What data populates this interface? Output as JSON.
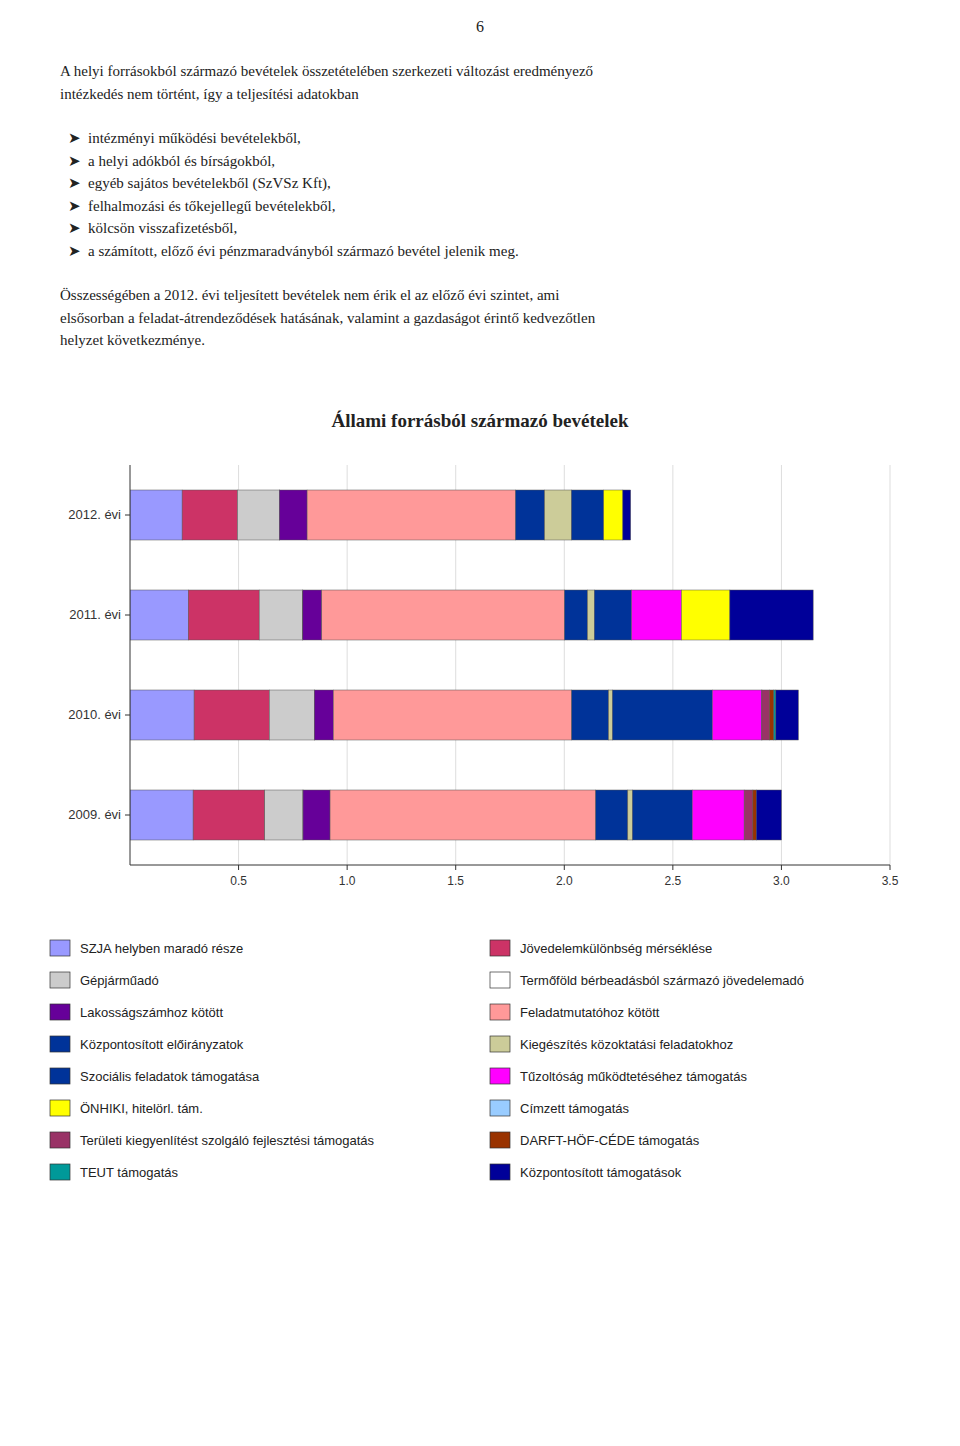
{
  "page_number": "6",
  "body_text": [
    [
      "A helyi forrásokból származó bevételek összetételében szerkezeti változást eredményező",
      "intézkedés nem történt, így a teljesítési adatokban"
    ],
    [
      "  ➤  intézményi működési bevételekből,",
      "  ➤  a helyi adókból és bírságokból,",
      "  ➤  egyéb sajátos bevételekből (SzVSz Kft),",
      "  ➤  felhalmozási és tőkejellegű bevételekből,",
      "  ➤  kölcsön visszafizetésből,",
      "  ➤  a számított, előző évi pénzmaradványból származó bevétel jelenik meg."
    ],
    [
      "Összességében a 2012. évi teljesített bevételek nem érik el az előző évi szintet, ami",
      "elsősorban a feladat-átrendeződések hatásának, valamint a gazdaságot érintő kedvezőtlen",
      "helyzet következménye."
    ]
  ],
  "chart_data": {
    "type": "bar",
    "orientation": "horizontal",
    "stacked": true,
    "grid": true,
    "title": "Állami forrásból származó bevételek",
    "categories": [
      "2009. évi",
      "2010. évi",
      "2011. évi",
      "2012. évi"
    ],
    "xlim": [
      0,
      3.5
    ],
    "xticks": [
      0.5,
      {
        "value": 1,
        "label": "1.0"
      },
      1.5,
      {
        "value": 2,
        "label": "2.0"
      },
      2.5,
      {
        "value": 3,
        "label": "3.0"
      },
      3.5
    ],
    "series": [
      {
        "name": "SZJA helyben maradó része",
        "color": "#9999FF",
        "values": [
          0.290849,
          0.295379,
          0.268572,
          0.240234
        ]
      },
      {
        "name": "Jövedelemkülönbség mérséklése",
        "color": "#CC3366",
        "values": [
          0.32971,
          0.346205,
          0.326517,
          0.254847
        ]
      },
      {
        "name": "Gépjárműadó",
        "color": "#CCCCCC",
        "values": [
          0.176205,
          0.20762,
          0.200465,
          0.192926
        ]
      },
      {
        "name": "Termőföld bérbeadásból származó jövedelemadó",
        "color": "#FFFFFF",
        "values": [
          9.5e-05,
          0.000172,
          0.00027,
          0.000294
        ]
      },
      {
        "name": "Lakosságszámhoz kötött",
        "color": "#660099",
        "values": [
          0.124455,
          0.086852,
          0.087266,
          0.127303
        ]
      },
      {
        "name": "Feladatmutatóhoz kötött",
        "color": "#FF9999",
        "values": [
          1.223461,
          1.097844,
          1.118094,
          0.960144
        ]
      },
      {
        "name": "Központosított előirányzatok",
        "color": "#003399",
        "values": [
          0.147662,
          0.169913,
          0.105767,
          0.133721
        ]
      },
      {
        "name": "Kiegészítés közoktatási feladatokhoz",
        "color": "#CCCC99",
        "values": [
          0.021578,
          0.018,
          0.031606,
          0.123623
        ]
      },
      {
        "name": "Szociális feladatok támogatása",
        "color": "#003399",
        "values": [
          0.275194,
          0.459895,
          0.171201,
          0.148482
        ]
      },
      {
        "name": "Tűzoltóság működtetéséhez támogatás",
        "color": "#FF00FF",
        "values": [
          0.239268,
          0.227866,
          0.229351,
          0
        ]
      },
      {
        "name": "ÖNHIKI, hitelörl. tám.",
        "color": "#FFFF00",
        "values": [
          0,
          0,
          0.223455,
          0.08815
        ]
      },
      {
        "name": "Címzett támogatás",
        "color": "#99CCFF",
        "values": [
          0,
          0.000232,
          0,
          0
        ]
      },
      {
        "name": "Területi kiegyenlítést szolgáló fejlesztési támogatás",
        "color": "#993366",
        "values": [
          0.040179,
          0.034861,
          0,
          0
        ]
      },
      {
        "name": "DARFT-HÖF-CÉDE támogatás",
        "color": "#993300",
        "values": [
          0.015448,
          0.020084,
          0,
          0
        ]
      },
      {
        "name": "TEUT támogatás",
        "color": "#009999",
        "values": [
          0,
          0.0093,
          0,
          0
        ]
      },
      {
        "name": "Központosított támogatások",
        "color": "#000099",
        "values": [
          0.115788,
          0.103698,
          0.383545,
          0.03586
        ]
      }
    ]
  }
}
